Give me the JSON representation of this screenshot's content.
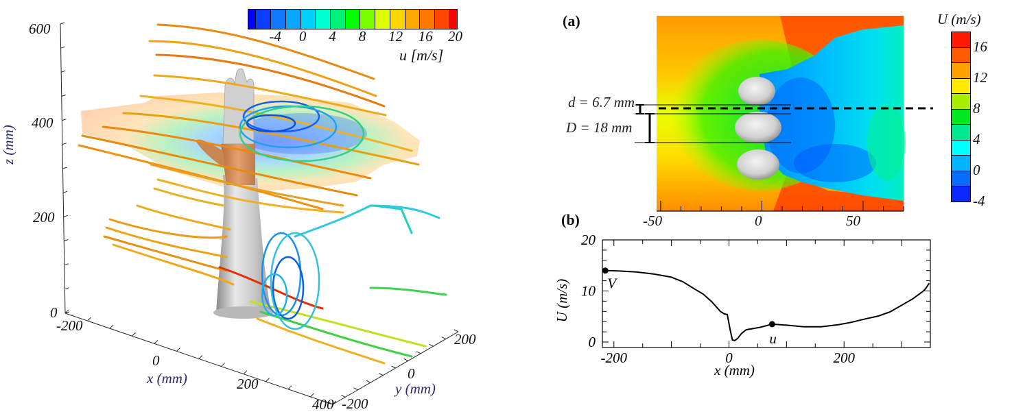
{
  "figure": {
    "panel_left": {
      "colorbar": {
        "title": "u [m/s]",
        "ticks": [
          "-4",
          "0",
          "4",
          "8",
          "12",
          "16",
          "20"
        ],
        "range": [
          -8,
          20
        ],
        "colors": [
          "#0000ff",
          "#0a3cff",
          "#1478ff",
          "#0aa5ff",
          "#00d2ff",
          "#00ffd2",
          "#00f078",
          "#00ff00",
          "#78ff00",
          "#dcff00",
          "#ffd700",
          "#ffaa00",
          "#ff7800",
          "#ff4600",
          "#ff0000"
        ]
      },
      "axes": {
        "z_label": "z (mm)",
        "z_ticks": [
          "0",
          "200",
          "400",
          "600"
        ],
        "x_label": "x (mm)",
        "x_ticks": [
          "-200",
          "0",
          "200",
          "400"
        ],
        "y_label": "y (mm)",
        "y_ticks": [
          "-200",
          "0",
          "200"
        ]
      }
    },
    "panel_a": {
      "label": "(a)",
      "x_ticks": [
        "-50",
        "0",
        "50"
      ],
      "annotations": {
        "d": "d = 6.7 mm",
        "D": "D = 18 mm"
      },
      "colorbar": {
        "title": "U (m/s)",
        "ticks": [
          "16",
          "12",
          "8",
          "4",
          "0",
          "-4"
        ],
        "range": [
          -4,
          18
        ],
        "colors": [
          "#ff1a00",
          "#ff5a00",
          "#ffa000",
          "#ffea00",
          "#a8ee00",
          "#00ea20",
          "#00e890",
          "#00ffff",
          "#00b4ff",
          "#0a6cff",
          "#0a28ff"
        ]
      }
    },
    "panel_b": {
      "label": "(b)",
      "markers": {
        "V": "V",
        "u": "u"
      }
    }
  },
  "chart_data": [
    {
      "type": "line",
      "title": "(b)",
      "xlabel": "x (mm)",
      "ylabel": "U (m/s)",
      "xlim": [
        -220,
        350
      ],
      "ylim": [
        0,
        20
      ],
      "x_ticks": [
        -200,
        0,
        200
      ],
      "x_tick_labels": [
        "-200",
        "0",
        "200"
      ],
      "y_ticks": [
        0,
        10,
        20
      ],
      "y_tick_labels": [
        "0",
        "10",
        "20"
      ],
      "series": [
        {
          "name": "U",
          "x": [
            -215,
            -190,
            -160,
            -130,
            -100,
            -80,
            -60,
            -45,
            -30,
            -15,
            -8,
            -3,
            2,
            6,
            10,
            15,
            22,
            30,
            40,
            55,
            75,
            100,
            130,
            160,
            190,
            210,
            240,
            260,
            280,
            300,
            320,
            338,
            342,
            348
          ],
          "y": [
            14.0,
            13.9,
            13.7,
            13.3,
            12.7,
            11.8,
            10.4,
            9.4,
            7.9,
            6.0,
            5.5,
            5.4,
            2.4,
            0.4,
            0.3,
            0.7,
            1.7,
            2.4,
            2.6,
            2.9,
            3.5,
            3.3,
            3.0,
            3.0,
            3.4,
            3.8,
            4.6,
            5.1,
            5.9,
            7.2,
            8.5,
            10.0,
            10.5,
            11.5
          ]
        }
      ],
      "points": [
        {
          "label": "V",
          "x": -215,
          "y": 14.0
        },
        {
          "label": "u",
          "x": 75,
          "y": 3.5
        }
      ]
    },
    {
      "type": "heatmap",
      "title": "(a)",
      "xlim": [
        -52,
        70
      ],
      "x_ticks": [
        -50,
        0,
        50
      ],
      "colorbar_label": "U (m/s)",
      "colorbar_range": [
        -4,
        18
      ]
    }
  ]
}
